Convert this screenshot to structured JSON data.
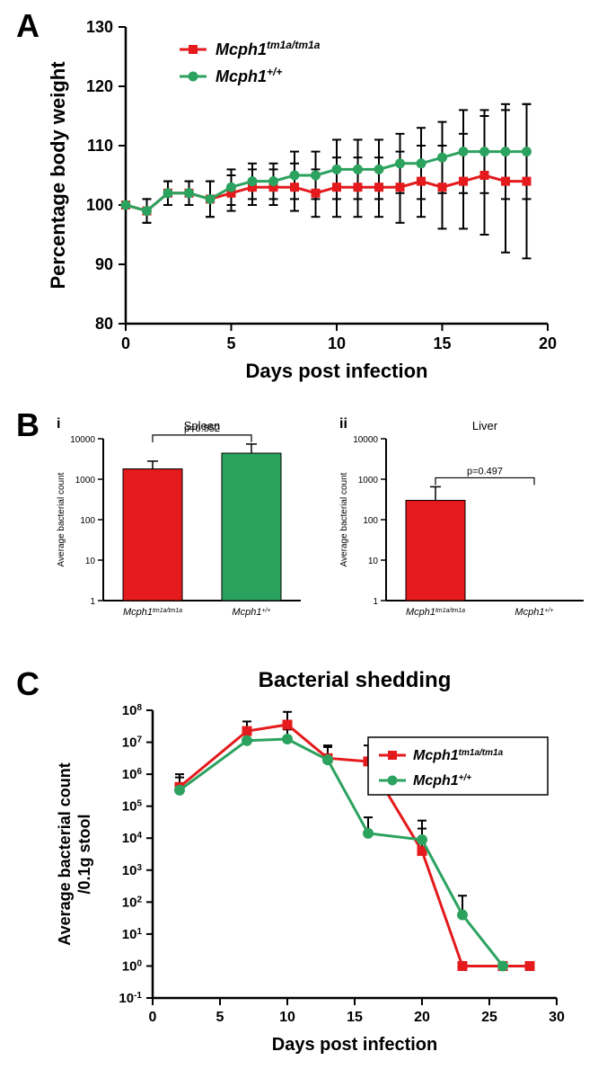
{
  "panelA": {
    "label": "A",
    "y_axis_label": "Percentage body weight",
    "x_axis_label": "Days post infection",
    "xlim": [
      0,
      20
    ],
    "xtick_step": 5,
    "ylim": [
      80,
      130
    ],
    "ytick_step": 10,
    "axis_color": "#000000",
    "tick_fontsize": 18,
    "label_fontsize": 22,
    "legend_fontsize": 18,
    "series": [
      {
        "name": "Mcph1_tm1a",
        "legend_main": "Mcph1",
        "legend_sup": "tm1a/tm1a",
        "color": "#e41a1c",
        "marker": "square",
        "x": [
          0,
          1,
          2,
          3,
          4,
          5,
          6,
          7,
          8,
          9,
          10,
          11,
          12,
          13,
          14,
          15,
          16,
          17,
          18,
          19
        ],
        "y": [
          100,
          99,
          102,
          102,
          101,
          102,
          103,
          103,
          103,
          102,
          103,
          103,
          103,
          103,
          104,
          103,
          104,
          105,
          104,
          104
        ],
        "err": [
          0.5,
          2,
          2,
          2,
          3,
          3,
          3,
          3,
          4,
          4,
          5,
          5,
          5,
          6,
          6,
          7,
          8,
          10,
          12,
          13
        ]
      },
      {
        "name": "Mcph1_wt",
        "legend_main": "Mcph1",
        "legend_sup": "+/+",
        "color": "#2ca25f",
        "marker": "circle",
        "x": [
          0,
          1,
          2,
          3,
          4,
          5,
          6,
          7,
          8,
          9,
          10,
          11,
          12,
          13,
          14,
          15,
          16,
          17,
          18,
          19
        ],
        "y": [
          100,
          99,
          102,
          102,
          101,
          103,
          104,
          104,
          105,
          105,
          106,
          106,
          106,
          107,
          107,
          108,
          109,
          109,
          109,
          109
        ],
        "err": [
          0.5,
          2,
          2,
          2,
          3,
          3,
          3,
          3,
          4,
          4,
          5,
          5,
          5,
          5,
          6,
          6,
          7,
          7,
          8,
          8
        ]
      }
    ]
  },
  "panelB": {
    "label": "B",
    "sub_i": {
      "tag": "i",
      "title": "Spleen",
      "y_axis_label": "Average bacterial count",
      "p_text": "p=0.552",
      "ylim_log": [
        0,
        4
      ],
      "yticks": [
        1,
        10,
        100,
        1000,
        10000
      ],
      "bars": [
        {
          "cat_main": "Mcph1",
          "cat_sup": "tm1a/tm1a",
          "value": 1800,
          "err": 1000,
          "color": "#e41a1c"
        },
        {
          "cat_main": "Mcph1",
          "cat_sup": "+/+",
          "value": 4400,
          "err": 3000,
          "color": "#2ca25f"
        }
      ]
    },
    "sub_ii": {
      "tag": "ii",
      "title": "Liver",
      "y_axis_label": "Average bacterial count",
      "p_text": "p=0.497",
      "ylim_log": [
        0,
        4
      ],
      "yticks": [
        1,
        10,
        100,
        1000,
        10000
      ],
      "bars": [
        {
          "cat_main": "Mcph1",
          "cat_sup": "tm1a/tm1a",
          "value": 300,
          "err": 350,
          "color": "#e41a1c"
        },
        {
          "cat_main": "Mcph1",
          "cat_sup": "+/+",
          "value": 0,
          "err": 0,
          "color": "#2ca25f"
        }
      ]
    }
  },
  "panelC": {
    "label": "C",
    "title": "Bacterial shedding",
    "y_axis_label_l1": "Average bacterial count",
    "y_axis_label_l2": "/0.1g stool",
    "x_axis_label": "Days post infection",
    "xlim": [
      0,
      30
    ],
    "xtick_step": 5,
    "ylim_log": [
      -1,
      8
    ],
    "axis_color": "#000000",
    "series": [
      {
        "name": "Mcph1_tm1a",
        "legend_main": "Mcph1",
        "legend_sup": "tm1a/tm1a",
        "color": "#e41a1c",
        "marker": "square",
        "x": [
          2,
          7,
          10,
          13,
          16,
          20,
          23,
          26,
          28
        ],
        "y_log": [
          5.6,
          7.35,
          7.55,
          6.5,
          6.4,
          3.6,
          0,
          0,
          0
        ],
        "err_log": [
          0.4,
          0.3,
          0.4,
          0.4,
          0.5,
          0.7,
          0,
          0,
          0
        ]
      },
      {
        "name": "Mcph1_wt",
        "legend_main": "Mcph1",
        "legend_sup": "+/+",
        "color": "#2ca25f",
        "marker": "circle",
        "x": [
          2,
          7,
          10,
          13,
          16,
          20,
          23,
          26
        ],
        "y_log": [
          5.5,
          7.05,
          7.1,
          6.45,
          4.15,
          3.95,
          1.6,
          0
        ],
        "err_log": [
          0.4,
          0.3,
          0.3,
          0.4,
          0.5,
          0.6,
          0.6,
          0
        ]
      }
    ]
  }
}
